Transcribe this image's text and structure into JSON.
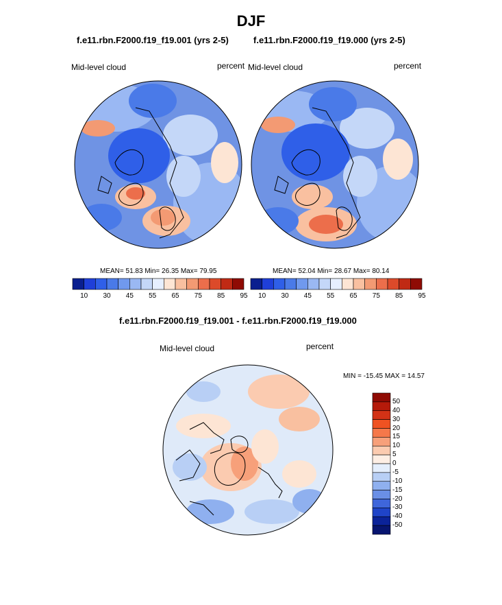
{
  "page_title": "DJF",
  "panels": [
    {
      "subtitle": "f.e11.rbn.F2000.f19_f19.001 (yrs 2-5)",
      "left_label": "Mid-level cloud",
      "right_label": "percent",
      "stats": "MEAN=  51.83  Min=  26.35  Max=  79.95"
    },
    {
      "subtitle": "f.e11.rbn.F2000.f19_f19.000 (yrs 2-5)",
      "left_label": "Mid-level cloud",
      "right_label": "percent",
      "stats": "MEAN=  52.04  Min=  28.67  Max=  80.14"
    }
  ],
  "abs_colorbar": {
    "colors": [
      "#0a1f8f",
      "#1f3fd9",
      "#2f5fe8",
      "#4a7ae8",
      "#7099ee",
      "#9ab8f3",
      "#c4d7f8",
      "#e6efff",
      "#fde5d4",
      "#f9c0a0",
      "#f39a73",
      "#ec6e4b",
      "#dc4a2a",
      "#c02a14",
      "#8f0b04"
    ],
    "tick_labels": [
      "10",
      "30",
      "45",
      "55",
      "65",
      "75",
      "85",
      "95"
    ]
  },
  "diff_panel": {
    "subtitle": "f.e11.rbn.F2000.f19_f19.001 - f.e11.rbn.F2000.f19_f19.000",
    "left_label": "Mid-level cloud",
    "right_label": "percent",
    "range_text": "MIN = -15.45 MAX =  14.57"
  },
  "diff_colorbar": {
    "colors": [
      "#8f0b04",
      "#b51a0a",
      "#d33216",
      "#ef5222",
      "#f5784a",
      "#f7a07a",
      "#fbcbb0",
      "#fdeee4",
      "#e4eefc",
      "#b8cff5",
      "#8fb0ef",
      "#6a8fe6",
      "#3f66db",
      "#1f44c8",
      "#0b2399",
      "#071570"
    ],
    "tick_labels": [
      "50",
      "40",
      "30",
      "20",
      "15",
      "10",
      "5",
      "0",
      "-5",
      "-10",
      "-15",
      "-20",
      "-30",
      "-40",
      "-50"
    ]
  },
  "colors": {
    "map_bg_abs": "#6f93e4",
    "map_bg_diff": "#dfeaf9",
    "coastline": "#000000",
    "warm": "#f2a07e",
    "cool": "#3f66d8"
  }
}
